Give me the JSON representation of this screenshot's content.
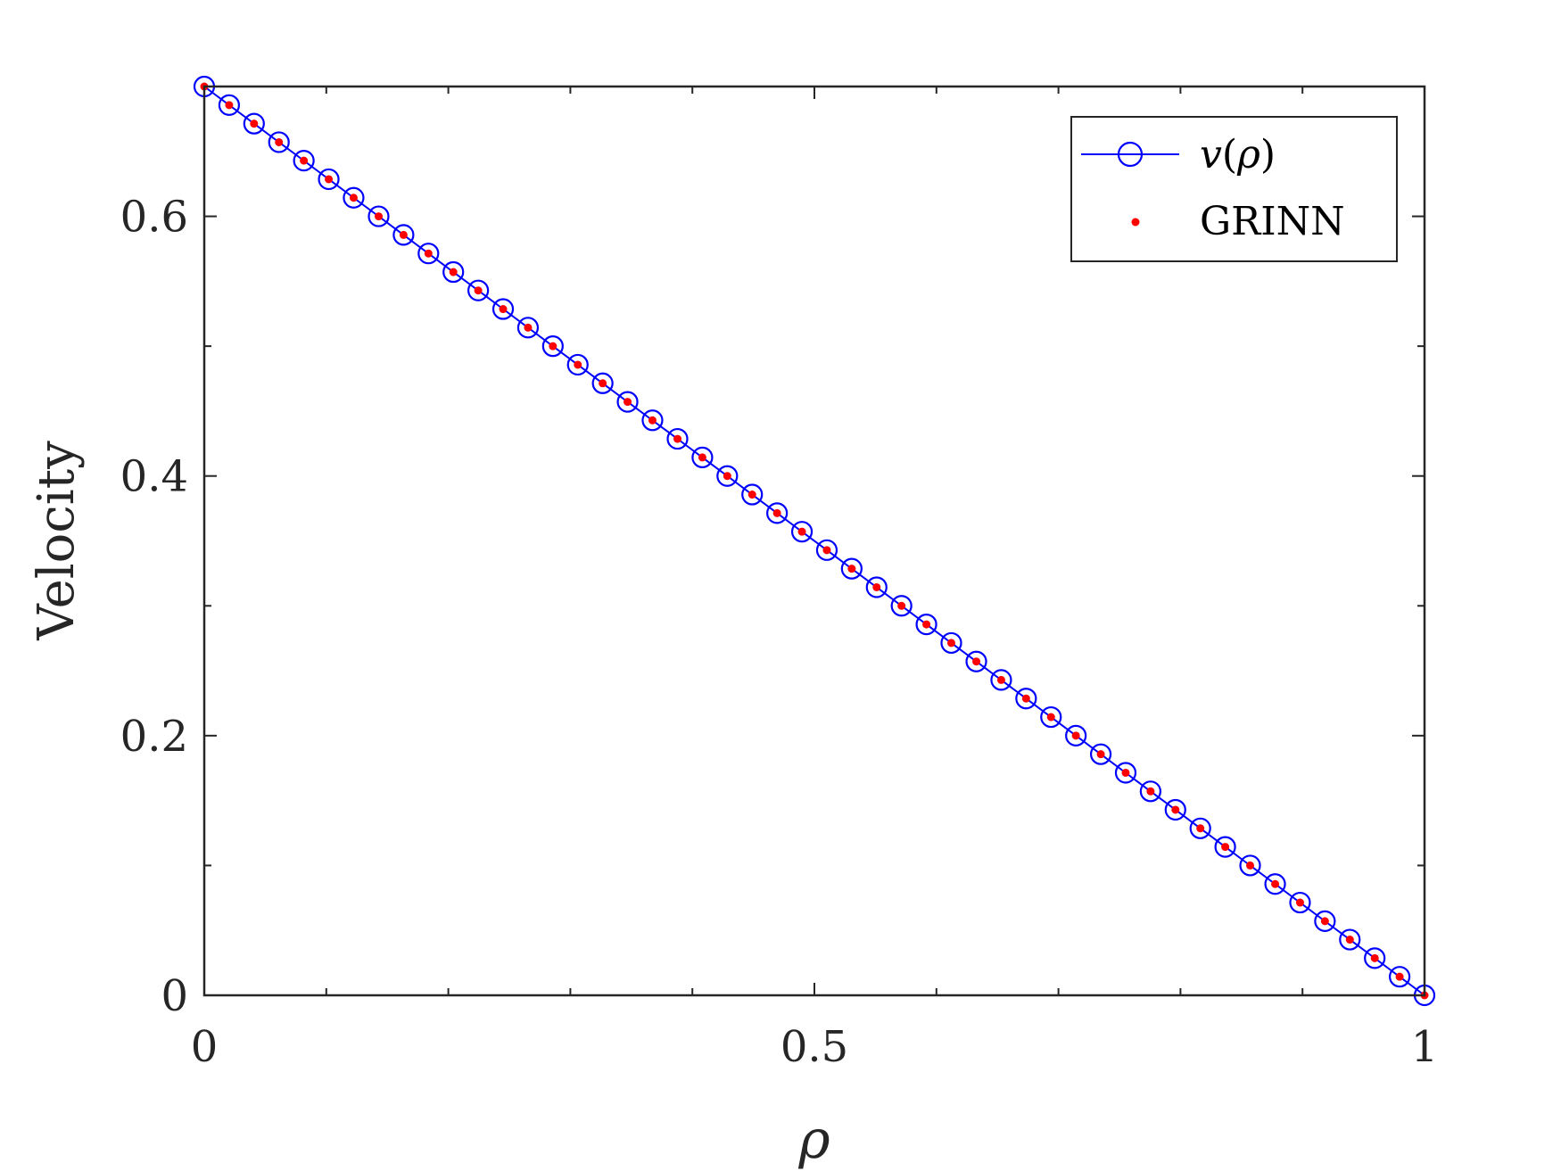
{
  "chart_data": {
    "type": "line",
    "title": "",
    "xlabel": "ρ",
    "ylabel": "Velocity",
    "xlim": [
      0,
      1
    ],
    "ylim": [
      0,
      0.7
    ],
    "x_major_ticks": [
      0,
      0.5,
      1
    ],
    "x_tick_labels": [
      "0",
      "0.5",
      "1"
    ],
    "x_minor_ticks": [
      0.1,
      0.2,
      0.3,
      0.4,
      0.6,
      0.7,
      0.8,
      0.9
    ],
    "y_major_ticks": [
      0,
      0.2,
      0.4,
      0.6
    ],
    "y_tick_labels": [
      "0",
      "0.2",
      "0.4",
      "0.6"
    ],
    "y_minor_ticks": [
      0.1,
      0.3,
      0.5
    ],
    "grid": false,
    "box": true,
    "legend_position": "top-right",
    "x": [
      0,
      0.0204,
      0.0408,
      0.0612,
      0.0816,
      0.102,
      0.1224,
      0.1429,
      0.1633,
      0.1837,
      0.2041,
      0.2245,
      0.2449,
      0.2653,
      0.2857,
      0.3061,
      0.3265,
      0.3469,
      0.3673,
      0.3878,
      0.4082,
      0.4286,
      0.449,
      0.4694,
      0.4898,
      0.5102,
      0.5306,
      0.551,
      0.5714,
      0.5918,
      0.6122,
      0.6327,
      0.6531,
      0.6735,
      0.6939,
      0.7143,
      0.7347,
      0.7551,
      0.7755,
      0.7959,
      0.8163,
      0.8367,
      0.8571,
      0.8776,
      0.898,
      0.9184,
      0.9388,
      0.9592,
      0.9796,
      1
    ],
    "series": [
      {
        "name": "v(ρ)",
        "name_parts": {
          "func": "v",
          "arg": "ρ"
        },
        "color": "#0000ff",
        "marker": "open-circle",
        "line": "solid",
        "values": [
          0.7,
          0.6857,
          0.6714,
          0.6571,
          0.6429,
          0.6286,
          0.6143,
          0.6,
          0.5857,
          0.5714,
          0.5571,
          0.5429,
          0.5286,
          0.5143,
          0.5,
          0.4857,
          0.4714,
          0.4571,
          0.4429,
          0.4286,
          0.4143,
          0.4,
          0.3857,
          0.3714,
          0.3571,
          0.3429,
          0.3286,
          0.3143,
          0.3,
          0.2857,
          0.2714,
          0.2571,
          0.2429,
          0.2286,
          0.2143,
          0.2,
          0.1857,
          0.1714,
          0.1571,
          0.1429,
          0.1286,
          0.1143,
          0.1,
          0.0857,
          0.0714,
          0.0571,
          0.0429,
          0.0286,
          0.0143,
          0.0
        ]
      },
      {
        "name": "GRINN",
        "color": "#ff0000",
        "marker": "filled-dot",
        "line": "none",
        "values": [
          0.7,
          0.6857,
          0.6714,
          0.6571,
          0.6429,
          0.6286,
          0.6143,
          0.6,
          0.5857,
          0.5714,
          0.5571,
          0.5429,
          0.5286,
          0.5143,
          0.5,
          0.4857,
          0.4714,
          0.4571,
          0.4429,
          0.4286,
          0.4143,
          0.4,
          0.3857,
          0.3714,
          0.3571,
          0.3429,
          0.3286,
          0.3143,
          0.3,
          0.2857,
          0.2714,
          0.2571,
          0.2429,
          0.2286,
          0.2143,
          0.2,
          0.1857,
          0.1714,
          0.1571,
          0.1429,
          0.1286,
          0.1143,
          0.1,
          0.0857,
          0.0714,
          0.0571,
          0.0429,
          0.0286,
          0.0143,
          0.0
        ]
      }
    ]
  }
}
